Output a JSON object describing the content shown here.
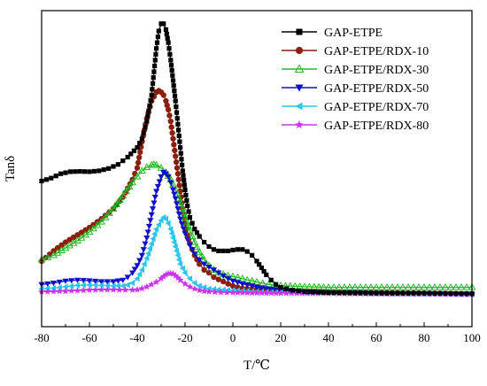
{
  "chart_data": {
    "type": "line",
    "title": "",
    "xlabel": "T/℃",
    "ylabel": "Tanδ",
    "xlim": [
      -80,
      100
    ],
    "ylim": [
      0,
      1
    ],
    "xticks": [
      -80,
      -60,
      -40,
      -20,
      0,
      20,
      40,
      60,
      80,
      100
    ],
    "yticks_shown": false,
    "legend_position": "top-right",
    "grid": false,
    "series": [
      {
        "name": "GAP-ETPE",
        "color": "#000000",
        "marker": "square",
        "points": [
          [
            -80,
            0.415
          ],
          [
            -76,
            0.425
          ],
          [
            -72,
            0.44
          ],
          [
            -68,
            0.447
          ],
          [
            -64,
            0.448
          ],
          [
            -60,
            0.447
          ],
          [
            -56,
            0.45
          ],
          [
            -52,
            0.458
          ],
          [
            -48,
            0.472
          ],
          [
            -44,
            0.497
          ],
          [
            -40,
            0.53
          ],
          [
            -38,
            0.56
          ],
          [
            -36,
            0.62
          ],
          [
            -34,
            0.71
          ],
          [
            -33,
            0.79
          ],
          [
            -32,
            0.87
          ],
          [
            -31,
            0.93
          ],
          [
            -30,
            0.955
          ],
          [
            -29,
            0.955
          ],
          [
            -28,
            0.935
          ],
          [
            -27,
            0.89
          ],
          [
            -26,
            0.83
          ],
          [
            -25,
            0.76
          ],
          [
            -24,
            0.69
          ],
          [
            -23,
            0.61
          ],
          [
            -22,
            0.53
          ],
          [
            -21,
            0.45
          ],
          [
            -20,
            0.385
          ],
          [
            -19,
            0.33
          ],
          [
            -18,
            0.29
          ],
          [
            -16,
            0.25
          ],
          [
            -14,
            0.225
          ],
          [
            -12,
            0.205
          ],
          [
            -10,
            0.19
          ],
          [
            -8,
            0.18
          ],
          [
            -6,
            0.175
          ],
          [
            -4,
            0.175
          ],
          [
            -2,
            0.175
          ],
          [
            0,
            0.178
          ],
          [
            2,
            0.18
          ],
          [
            4,
            0.18
          ],
          [
            6,
            0.173
          ],
          [
            8,
            0.16
          ],
          [
            10,
            0.14
          ],
          [
            12,
            0.117
          ],
          [
            14,
            0.093
          ],
          [
            16,
            0.075
          ],
          [
            18,
            0.06
          ],
          [
            20,
            0.05
          ],
          [
            25,
            0.04
          ],
          [
            30,
            0.035
          ],
          [
            40,
            0.032
          ],
          [
            60,
            0.03
          ],
          [
            80,
            0.03
          ],
          [
            100,
            0.028
          ]
        ]
      },
      {
        "name": "GAP-ETPE/RDX-10",
        "color": "#8b1f0f",
        "marker": "circle",
        "points": [
          [
            -80,
            0.14
          ],
          [
            -75,
            0.175
          ],
          [
            -70,
            0.205
          ],
          [
            -65,
            0.23
          ],
          [
            -60,
            0.255
          ],
          [
            -55,
            0.285
          ],
          [
            -50,
            0.32
          ],
          [
            -46,
            0.36
          ],
          [
            -42,
            0.42
          ],
          [
            -40,
            0.46
          ],
          [
            -38,
            0.55
          ],
          [
            -36,
            0.63
          ],
          [
            -34,
            0.69
          ],
          [
            -32,
            0.72
          ],
          [
            -31,
            0.725
          ],
          [
            -30,
            0.72
          ],
          [
            -29,
            0.71
          ],
          [
            -28,
            0.69
          ],
          [
            -27,
            0.66
          ],
          [
            -26,
            0.62
          ],
          [
            -25,
            0.56
          ],
          [
            -24,
            0.5
          ],
          [
            -23,
            0.44
          ],
          [
            -22,
            0.38
          ],
          [
            -21,
            0.32
          ],
          [
            -20,
            0.27
          ],
          [
            -19,
            0.23
          ],
          [
            -18,
            0.2
          ],
          [
            -16,
            0.16
          ],
          [
            -14,
            0.13
          ],
          [
            -12,
            0.11
          ],
          [
            -10,
            0.1
          ],
          [
            -8,
            0.085
          ],
          [
            -6,
            0.077
          ],
          [
            -4,
            0.07
          ],
          [
            -2,
            0.062
          ],
          [
            0,
            0.055
          ],
          [
            2,
            0.05
          ],
          [
            4,
            0.046
          ],
          [
            8,
            0.044
          ],
          [
            12,
            0.042
          ],
          [
            20,
            0.04
          ],
          [
            30,
            0.037
          ],
          [
            40,
            0.035
          ],
          [
            60,
            0.032
          ],
          [
            80,
            0.03
          ],
          [
            100,
            0.028
          ]
        ]
      },
      {
        "name": "GAP-ETPE/RDX-30",
        "color": "#22bb22",
        "marker": "triangle-up-open",
        "points": [
          [
            -80,
            0.145
          ],
          [
            -75,
            0.16
          ],
          [
            -70,
            0.185
          ],
          [
            -65,
            0.21
          ],
          [
            -60,
            0.24
          ],
          [
            -55,
            0.275
          ],
          [
            -50,
            0.32
          ],
          [
            -46,
            0.365
          ],
          [
            -42,
            0.41
          ],
          [
            -40,
            0.43
          ],
          [
            -38,
            0.45
          ],
          [
            -36,
            0.462
          ],
          [
            -34,
            0.47
          ],
          [
            -33,
            0.472
          ],
          [
            -32,
            0.47
          ],
          [
            -30,
            0.46
          ],
          [
            -28,
            0.445
          ],
          [
            -26,
            0.42
          ],
          [
            -24,
            0.385
          ],
          [
            -22,
            0.34
          ],
          [
            -20,
            0.29
          ],
          [
            -18,
            0.245
          ],
          [
            -16,
            0.205
          ],
          [
            -14,
            0.17
          ],
          [
            -12,
            0.145
          ],
          [
            -10,
            0.125
          ],
          [
            -8,
            0.11
          ],
          [
            -6,
            0.1
          ],
          [
            -4,
            0.095
          ],
          [
            -2,
            0.09
          ],
          [
            0,
            0.087
          ],
          [
            2,
            0.084
          ],
          [
            4,
            0.08
          ],
          [
            6,
            0.075
          ],
          [
            8,
            0.072
          ],
          [
            10,
            0.068
          ],
          [
            15,
            0.06
          ],
          [
            20,
            0.056
          ],
          [
            30,
            0.052
          ],
          [
            40,
            0.05
          ],
          [
            60,
            0.05
          ],
          [
            80,
            0.05
          ],
          [
            100,
            0.05
          ]
        ]
      },
      {
        "name": "GAP-ETPE/RDX-50",
        "color": "#1010c8",
        "marker": "triangle-down",
        "points": [
          [
            -80,
            0.06
          ],
          [
            -75,
            0.065
          ],
          [
            -70,
            0.072
          ],
          [
            -65,
            0.075
          ],
          [
            -60,
            0.073
          ],
          [
            -55,
            0.07
          ],
          [
            -50,
            0.07
          ],
          [
            -46,
            0.075
          ],
          [
            -44,
            0.085
          ],
          [
            -42,
            0.1
          ],
          [
            -40,
            0.125
          ],
          [
            -38,
            0.16
          ],
          [
            -36,
            0.22
          ],
          [
            -34,
            0.3
          ],
          [
            -32,
            0.38
          ],
          [
            -30,
            0.43
          ],
          [
            -29,
            0.445
          ],
          [
            -28,
            0.44
          ],
          [
            -27,
            0.43
          ],
          [
            -26,
            0.41
          ],
          [
            -25,
            0.385
          ],
          [
            -24,
            0.355
          ],
          [
            -23,
            0.32
          ],
          [
            -22,
            0.285
          ],
          [
            -20,
            0.235
          ],
          [
            -18,
            0.195
          ],
          [
            -16,
            0.165
          ],
          [
            -14,
            0.145
          ],
          [
            -12,
            0.13
          ],
          [
            -10,
            0.12
          ],
          [
            -8,
            0.11
          ],
          [
            -6,
            0.1
          ],
          [
            -4,
            0.09
          ],
          [
            -2,
            0.08
          ],
          [
            0,
            0.072
          ],
          [
            4,
            0.062
          ],
          [
            8,
            0.055
          ],
          [
            12,
            0.048
          ],
          [
            20,
            0.04
          ],
          [
            30,
            0.035
          ],
          [
            40,
            0.032
          ],
          [
            60,
            0.03
          ],
          [
            80,
            0.028
          ],
          [
            100,
            0.026
          ]
        ]
      },
      {
        "name": "GAP-ETPE/RDX-70",
        "color": "#29c6ee",
        "marker": "triangle-left",
        "points": [
          [
            -80,
            0.045
          ],
          [
            -75,
            0.047
          ],
          [
            -70,
            0.052
          ],
          [
            -65,
            0.057
          ],
          [
            -60,
            0.058
          ],
          [
            -55,
            0.057
          ],
          [
            -50,
            0.055
          ],
          [
            -46,
            0.055
          ],
          [
            -44,
            0.058
          ],
          [
            -42,
            0.065
          ],
          [
            -40,
            0.08
          ],
          [
            -38,
            0.11
          ],
          [
            -36,
            0.15
          ],
          [
            -34,
            0.2
          ],
          [
            -32,
            0.25
          ],
          [
            -30,
            0.28
          ],
          [
            -29,
            0.29
          ],
          [
            -28,
            0.285
          ],
          [
            -27,
            0.27
          ],
          [
            -26,
            0.25
          ],
          [
            -25,
            0.22
          ],
          [
            -24,
            0.19
          ],
          [
            -23,
            0.16
          ],
          [
            -22,
            0.13
          ],
          [
            -20,
            0.1
          ],
          [
            -18,
            0.08
          ],
          [
            -16,
            0.065
          ],
          [
            -14,
            0.055
          ],
          [
            -12,
            0.05
          ],
          [
            -10,
            0.045
          ],
          [
            -6,
            0.042
          ],
          [
            0,
            0.04
          ],
          [
            10,
            0.035
          ],
          [
            20,
            0.032
          ],
          [
            40,
            0.03
          ],
          [
            60,
            0.028
          ],
          [
            80,
            0.027
          ],
          [
            100,
            0.026
          ]
        ]
      },
      {
        "name": "GAP-ETPE/RDX-80",
        "color": "#cc33ee",
        "marker": "star",
        "points": [
          [
            -80,
            0.035
          ],
          [
            -75,
            0.036
          ],
          [
            -70,
            0.037
          ],
          [
            -65,
            0.039
          ],
          [
            -60,
            0.041
          ],
          [
            -55,
            0.042
          ],
          [
            -50,
            0.042
          ],
          [
            -45,
            0.041
          ],
          [
            -42,
            0.041
          ],
          [
            -40,
            0.042
          ],
          [
            -38,
            0.046
          ],
          [
            -36,
            0.052
          ],
          [
            -34,
            0.06
          ],
          [
            -32,
            0.068
          ],
          [
            -30,
            0.08
          ],
          [
            -29,
            0.087
          ],
          [
            -28,
            0.093
          ],
          [
            -27,
            0.097
          ],
          [
            -26,
            0.098
          ],
          [
            -25,
            0.096
          ],
          [
            -24,
            0.09
          ],
          [
            -23,
            0.083
          ],
          [
            -22,
            0.075
          ],
          [
            -20,
            0.062
          ],
          [
            -18,
            0.052
          ],
          [
            -16,
            0.045
          ],
          [
            -14,
            0.04
          ],
          [
            -12,
            0.037
          ],
          [
            -10,
            0.035
          ],
          [
            -5,
            0.033
          ],
          [
            0,
            0.032
          ],
          [
            10,
            0.031
          ],
          [
            20,
            0.03
          ],
          [
            40,
            0.029
          ],
          [
            60,
            0.028
          ],
          [
            80,
            0.027
          ],
          [
            100,
            0.026
          ]
        ]
      }
    ]
  }
}
